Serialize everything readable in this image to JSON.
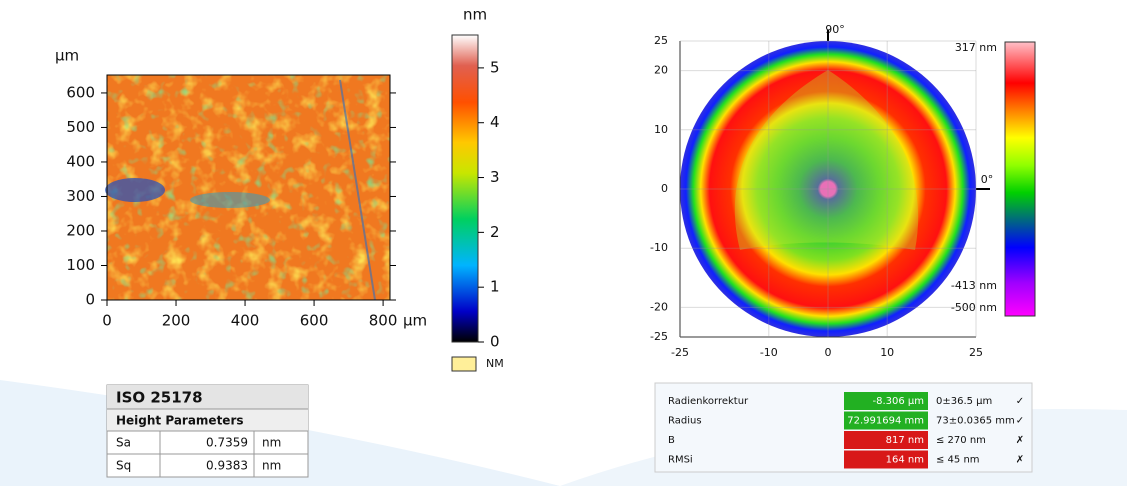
{
  "height_map": {
    "y_unit": "µm",
    "x_unit": "µm",
    "xticks": [
      0,
      200,
      400,
      600,
      800
    ],
    "yticks": [
      0,
      100,
      200,
      300,
      400,
      500,
      600
    ],
    "xlim": [
      0,
      820
    ],
    "ylim": [
      0,
      652
    ]
  },
  "height_colorbar": {
    "unit": "nm",
    "ticks": [
      0,
      1,
      2,
      3,
      4,
      5
    ],
    "lim": [
      0,
      5.6
    ],
    "legend": "NM"
  },
  "iso_table": {
    "title": "ISO 25178",
    "subtitle": "Height Parameters",
    "rows": [
      [
        "Sa",
        "0.7359",
        "nm"
      ],
      [
        "Sq",
        "0.9383",
        "nm"
      ]
    ]
  },
  "polar_map": {
    "angle_top": "90°",
    "angle_right": "0°",
    "lim": [
      -25,
      25
    ],
    "xticks": [
      -25,
      -10,
      0,
      10,
      25
    ],
    "yticks": [
      -25,
      -20,
      -10,
      0,
      10,
      20,
      25
    ],
    "colorbar_labels": [
      "317 nm",
      "-413 nm",
      "-500 nm"
    ]
  },
  "result_table": {
    "rows": [
      [
        "Radienkorrektur",
        "-8.306 µm",
        "0±36.5 µm",
        "✓"
      ],
      [
        "Radius",
        "72.991694 mm",
        "73±0.0365 mm",
        "✓"
      ],
      [
        "B",
        "817 nm",
        "≤ 270 nm",
        "✗"
      ],
      [
        "RMSi",
        "164 nm",
        "≤ 45 nm",
        "✗"
      ]
    ]
  }
}
